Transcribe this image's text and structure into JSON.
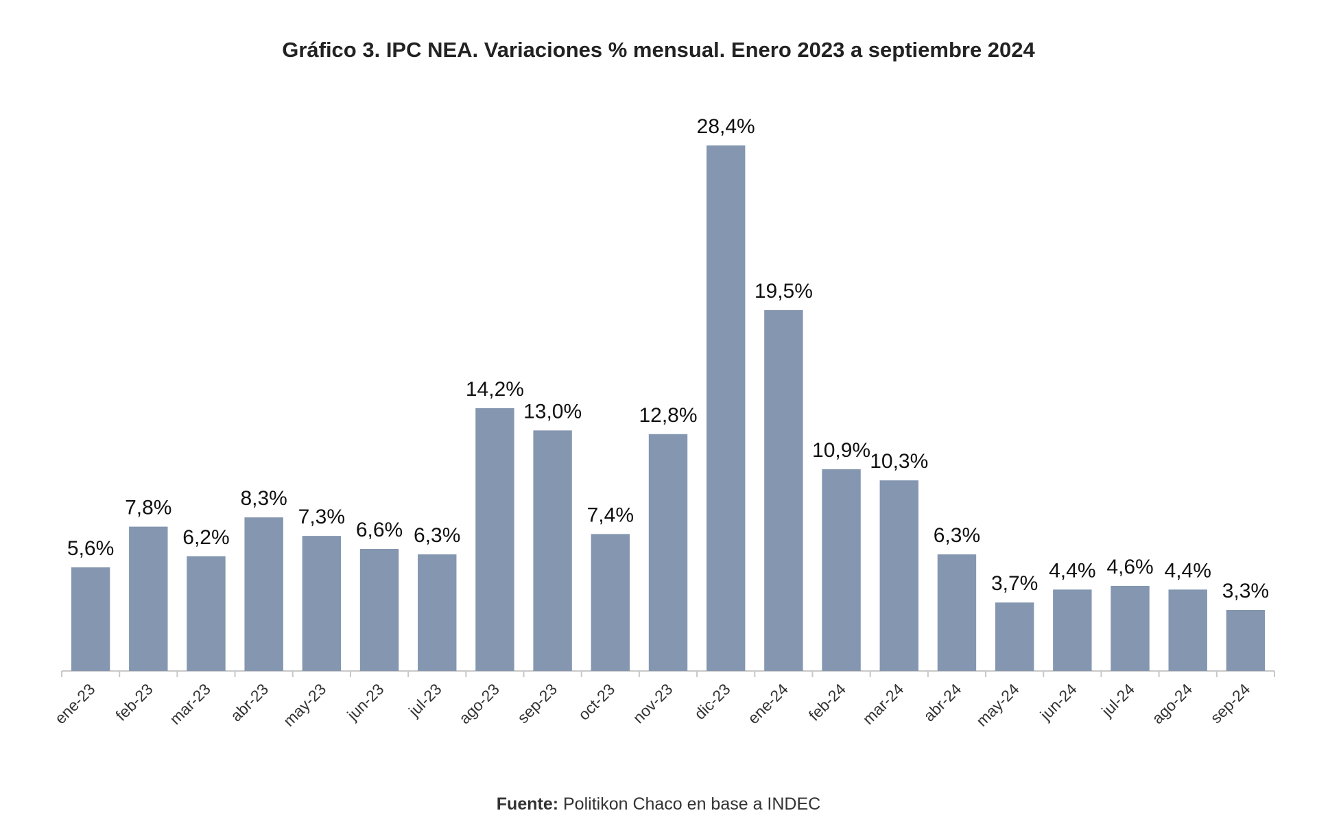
{
  "chart_data": {
    "type": "bar",
    "title": "Gráfico 3. IPC NEA. Variaciones % mensual. Enero 2023 a septiembre 2024",
    "categories": [
      "ene-23",
      "feb-23",
      "mar-23",
      "abr-23",
      "may-23",
      "jun-23",
      "jul-23",
      "ago-23",
      "sep-23",
      "oct-23",
      "nov-23",
      "dic-23",
      "ene-24",
      "feb-24",
      "mar-24",
      "abr-24",
      "may-24",
      "jun-24",
      "jul-24",
      "ago-24",
      "sep-24"
    ],
    "values": [
      5.6,
      7.8,
      6.2,
      8.3,
      7.3,
      6.6,
      6.3,
      14.2,
      13.0,
      7.4,
      12.8,
      28.4,
      19.5,
      10.9,
      10.3,
      6.3,
      3.7,
      4.4,
      4.6,
      4.4,
      3.3
    ],
    "data_labels": [
      "5,6%",
      "7,8%",
      "6,2%",
      "8,3%",
      "7,3%",
      "6,6%",
      "6,3%",
      "14,2%",
      "13,0%",
      "7,4%",
      "12,8%",
      "28,4%",
      "19,5%",
      "10,9%",
      "10,3%",
      "6,3%",
      "3,7%",
      "4,4%",
      "4,6%",
      "4,4%",
      "3,3%"
    ],
    "ylim": [
      0,
      28.4
    ],
    "grid": false,
    "legend": "none",
    "bar_color": "#8496b0"
  },
  "source": {
    "label": "Fuente:",
    "text": " Politikon Chaco en base a INDEC"
  }
}
